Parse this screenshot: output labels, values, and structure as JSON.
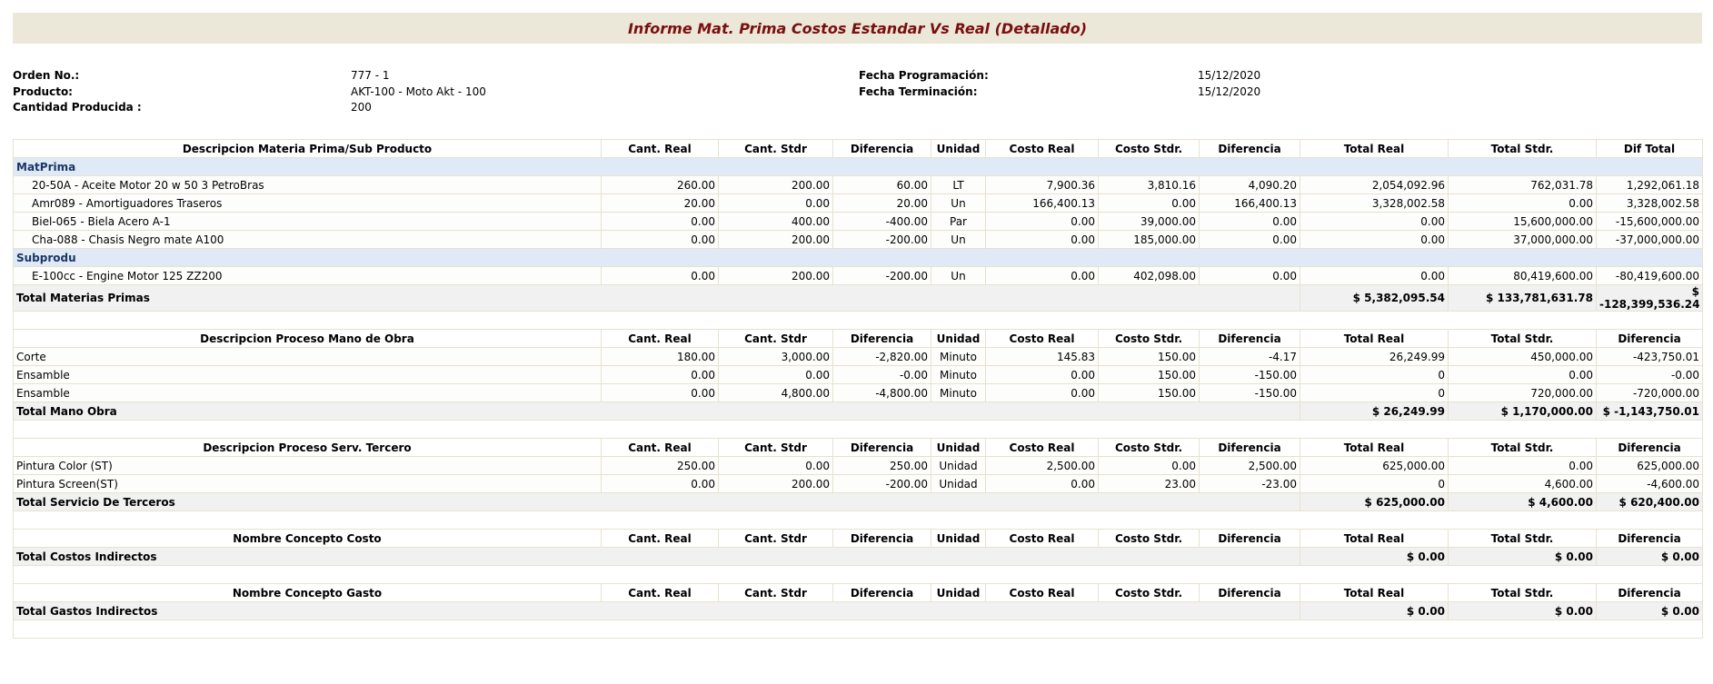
{
  "header": {
    "title": "Informe Mat. Prima Costos Estandar Vs Real (Detallado)"
  },
  "info": {
    "left": [
      {
        "label": "Orden No.:",
        "value": "777 - 1"
      },
      {
        "label": "Producto:",
        "value": "AKT-100 - Moto Akt - 100"
      },
      {
        "label": "Cantidad Producida :",
        "value": "200"
      }
    ],
    "right": [
      {
        "label": "Fecha Programación:",
        "value": "15/12/2020"
      },
      {
        "label": "Fecha Terminación:",
        "value": "15/12/2020"
      }
    ]
  },
  "sections": [
    {
      "columns": [
        "Descripcion Materia Prima/Sub Producto",
        "Cant. Real",
        "Cant. Stdr",
        "Diferencia",
        "Unidad",
        "Costo Real",
        "Costo Stdr.",
        "Diferencia",
        "Total Real",
        "Total Stdr.",
        "Dif Total"
      ],
      "groups": [
        {
          "name": "MatPrima",
          "rows": [
            [
              "20-50A - Aceite Motor 20 w 50 3 PetroBras",
              "260.00",
              "200.00",
              "60.00",
              "LT",
              "7,900.36",
              "3,810.16",
              "4,090.20",
              "2,054,092.96",
              "762,031.78",
              "1,292,061.18"
            ],
            [
              "Amr089 - Amortiguadores Traseros",
              "20.00",
              "0.00",
              "20.00",
              "Un",
              "166,400.13",
              "0.00",
              "166,400.13",
              "3,328,002.58",
              "0.00",
              "3,328,002.58"
            ],
            [
              "Biel-065 - Biela Acero A-1",
              "0.00",
              "400.00",
              "-400.00",
              "Par",
              "0.00",
              "39,000.00",
              "0.00",
              "0.00",
              "15,600,000.00",
              "-15,600,000.00"
            ],
            [
              "Cha-088 - Chasis Negro mate A100",
              "0.00",
              "200.00",
              "-200.00",
              "Un",
              "0.00",
              "185,000.00",
              "0.00",
              "0.00",
              "37,000,000.00",
              "-37,000,000.00"
            ]
          ]
        },
        {
          "name": "Subprodu",
          "rows": [
            [
              "E-100cc - Engine Motor 125 ZZ200",
              "0.00",
              "200.00",
              "-200.00",
              "Un",
              "0.00",
              "402,098.00",
              "0.00",
              "0.00",
              "80,419,600.00",
              "-80,419,600.00"
            ]
          ]
        }
      ],
      "total": {
        "label": "Total Materias Primas",
        "values": [
          "$ 5,382,095.54",
          "$ 133,781,631.78",
          "$ -128,399,536.24"
        ]
      }
    },
    {
      "columns": [
        "Descripcion Proceso Mano de Obra",
        "Cant. Real",
        "Cant. Stdr",
        "Diferencia",
        "Unidad",
        "Costo Real",
        "Costo Stdr.",
        "Diferencia",
        "Total Real",
        "Total Stdr.",
        "Diferencia"
      ],
      "rows": [
        [
          "Corte",
          "180.00",
          "3,000.00",
          "-2,820.00",
          "Minuto",
          "145.83",
          "150.00",
          "-4.17",
          "26,249.99",
          "450,000.00",
          "-423,750.01"
        ],
        [
          "Ensamble",
          "0.00",
          "0.00",
          "-0.00",
          "Minuto",
          "0.00",
          "150.00",
          "-150.00",
          "0",
          "0.00",
          "-0.00"
        ],
        [
          "Ensamble",
          "0.00",
          "4,800.00",
          "-4,800.00",
          "Minuto",
          "0.00",
          "150.00",
          "-150.00",
          "0",
          "720,000.00",
          "-720,000.00"
        ]
      ],
      "total": {
        "label": "Total Mano Obra",
        "values": [
          "$ 26,249.99",
          "$ 1,170,000.00",
          "$ -1,143,750.01"
        ]
      }
    },
    {
      "columns": [
        "Descripcion Proceso Serv. Tercero",
        "Cant. Real",
        "Cant. Stdr",
        "Diferencia",
        "Unidad",
        "Costo Real",
        "Costo Stdr.",
        "Diferencia",
        "Total Real",
        "Total Stdr.",
        "Diferencia"
      ],
      "rows": [
        [
          "Pintura Color (ST)",
          "250.00",
          "0.00",
          "250.00",
          "Unidad",
          "2,500.00",
          "0.00",
          "2,500.00",
          "625,000.00",
          "0.00",
          "625,000.00"
        ],
        [
          "Pintura Screen(ST)",
          "0.00",
          "200.00",
          "-200.00",
          "Unidad",
          "0.00",
          "23.00",
          "-23.00",
          "0",
          "4,600.00",
          "-4,600.00"
        ]
      ],
      "total": {
        "label": "Total Servicio De Terceros",
        "values": [
          "$ 625,000.00",
          "$ 4,600.00",
          "$ 620,400.00"
        ]
      }
    },
    {
      "columns": [
        "Nombre Concepto Costo",
        "Cant. Real",
        "Cant. Stdr",
        "Diferencia",
        "Unidad",
        "Costo Real",
        "Costo Stdr.",
        "Diferencia",
        "Total Real",
        "Total Stdr.",
        "Diferencia"
      ],
      "rows": [],
      "total": {
        "label": "Total Costos Indirectos",
        "values": [
          "$ 0.00",
          "$ 0.00",
          "$ 0.00"
        ]
      }
    },
    {
      "columns": [
        "Nombre Concepto Gasto",
        "Cant. Real",
        "Cant. Stdr",
        "Diferencia",
        "Unidad",
        "Costo Real",
        "Costo Stdr.",
        "Diferencia",
        "Total Real",
        "Total Stdr.",
        "Diferencia"
      ],
      "rows": [],
      "total": {
        "label": "Total Gastos Indirectos",
        "values": [
          "$ 0.00",
          "$ 0.00",
          "$ 0.00"
        ]
      }
    }
  ]
}
